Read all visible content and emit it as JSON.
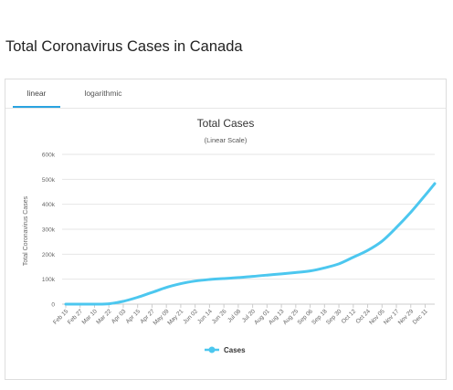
{
  "page": {
    "title": "Total Coronavirus Cases in Canada"
  },
  "tabs": [
    {
      "label": "linear",
      "active": true
    },
    {
      "label": "logarithmic",
      "active": false
    }
  ],
  "colors": {
    "series": "#4cc7ef",
    "active_tab": "#2aa3e0",
    "grid": "#e6e6e6"
  },
  "chart_data": {
    "type": "line",
    "title": "Total Cases",
    "subtitle": "(Linear Scale)",
    "ylabel": "Total Coronavirus Cases",
    "xlabel": "",
    "ylim": [
      0,
      600000
    ],
    "y_ticks": [
      0,
      100000,
      200000,
      300000,
      400000,
      500000,
      600000
    ],
    "y_tick_labels": [
      "0",
      "100k",
      "200k",
      "300k",
      "400k",
      "500k",
      "600k"
    ],
    "x_ticks": [
      "Feb 15",
      "Feb 27",
      "Mar 10",
      "Mar 22",
      "Apr 03",
      "Apr 15",
      "Apr 27",
      "May 09",
      "May 21",
      "Jun 02",
      "Jun 14",
      "Jun 26",
      "Jul 08",
      "Jul 20",
      "Aug 01",
      "Aug 13",
      "Aug 25",
      "Sep 06",
      "Sep 18",
      "Sep 30",
      "Oct 12",
      "Oct 24",
      "Nov 05",
      "Nov 17",
      "Nov 29",
      "Dec 11"
    ],
    "grid": true,
    "legend": "bottom-center",
    "series": [
      {
        "name": "Cases",
        "x": [
          "Feb 15",
          "Feb 27",
          "Mar 10",
          "Mar 22",
          "Apr 03",
          "Apr 15",
          "Apr 27",
          "May 09",
          "May 21",
          "Jun 02",
          "Jun 14",
          "Jun 26",
          "Jul 08",
          "Jul 20",
          "Aug 01",
          "Aug 13",
          "Aug 25",
          "Sep 06",
          "Sep 18",
          "Sep 30",
          "Oct 12",
          "Oct 24",
          "Nov 05",
          "Nov 17",
          "Nov 29",
          "Dec 11",
          "Dec 19"
        ],
        "values": [
          8,
          15,
          90,
          1400,
          11500,
          27500,
          47000,
          66800,
          82000,
          92400,
          98700,
          102600,
          106400,
          111100,
          116300,
          121200,
          126600,
          133100,
          145400,
          161500,
          188000,
          215000,
          252000,
          307000,
          368000,
          436000,
          483000
        ]
      }
    ]
  }
}
